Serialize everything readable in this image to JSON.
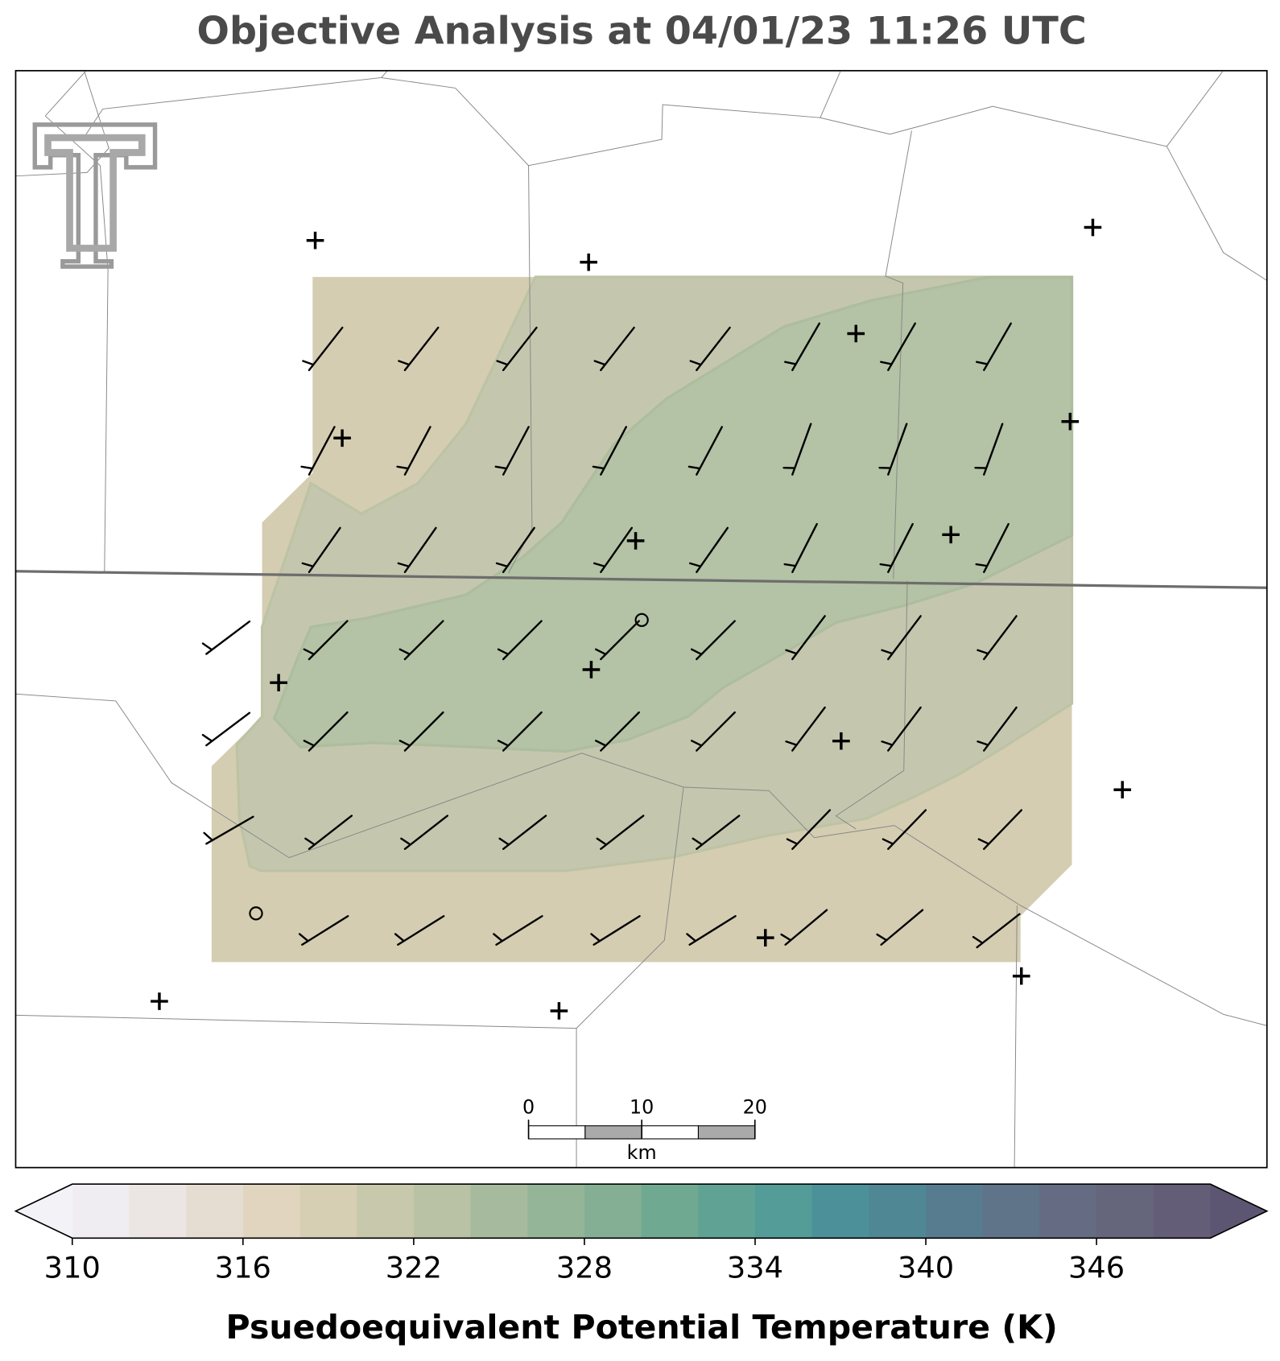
{
  "title": "Objective Analysis at 04/01/23 11:26 UTC",
  "colorbar": {
    "label": "Psuedoequivalent Potential Temperature (K)",
    "lim": [
      310,
      350
    ],
    "ticks": [
      310,
      316,
      322,
      328,
      334,
      340,
      346
    ],
    "colors": [
      "#efedf1",
      "#ebe6e3",
      "#e6ddd2",
      "#e2d5c0",
      "#d6cfb3",
      "#c8c8ac",
      "#b9c2a5",
      "#a6bb9d",
      "#94b598",
      "#84af94",
      "#70a991",
      "#60a394",
      "#539c97",
      "#4c9199",
      "#4f8794",
      "#577c8f",
      "#5f7389",
      "#646b82",
      "#65657c",
      "#635d77"
    ],
    "under_color": "#f3f2f7",
    "over_color": "#5d5672"
  },
  "scale_bar": {
    "lim": [
      0,
      20
    ],
    "ticks": [
      0,
      10,
      20
    ],
    "unit": "km"
  }
}
